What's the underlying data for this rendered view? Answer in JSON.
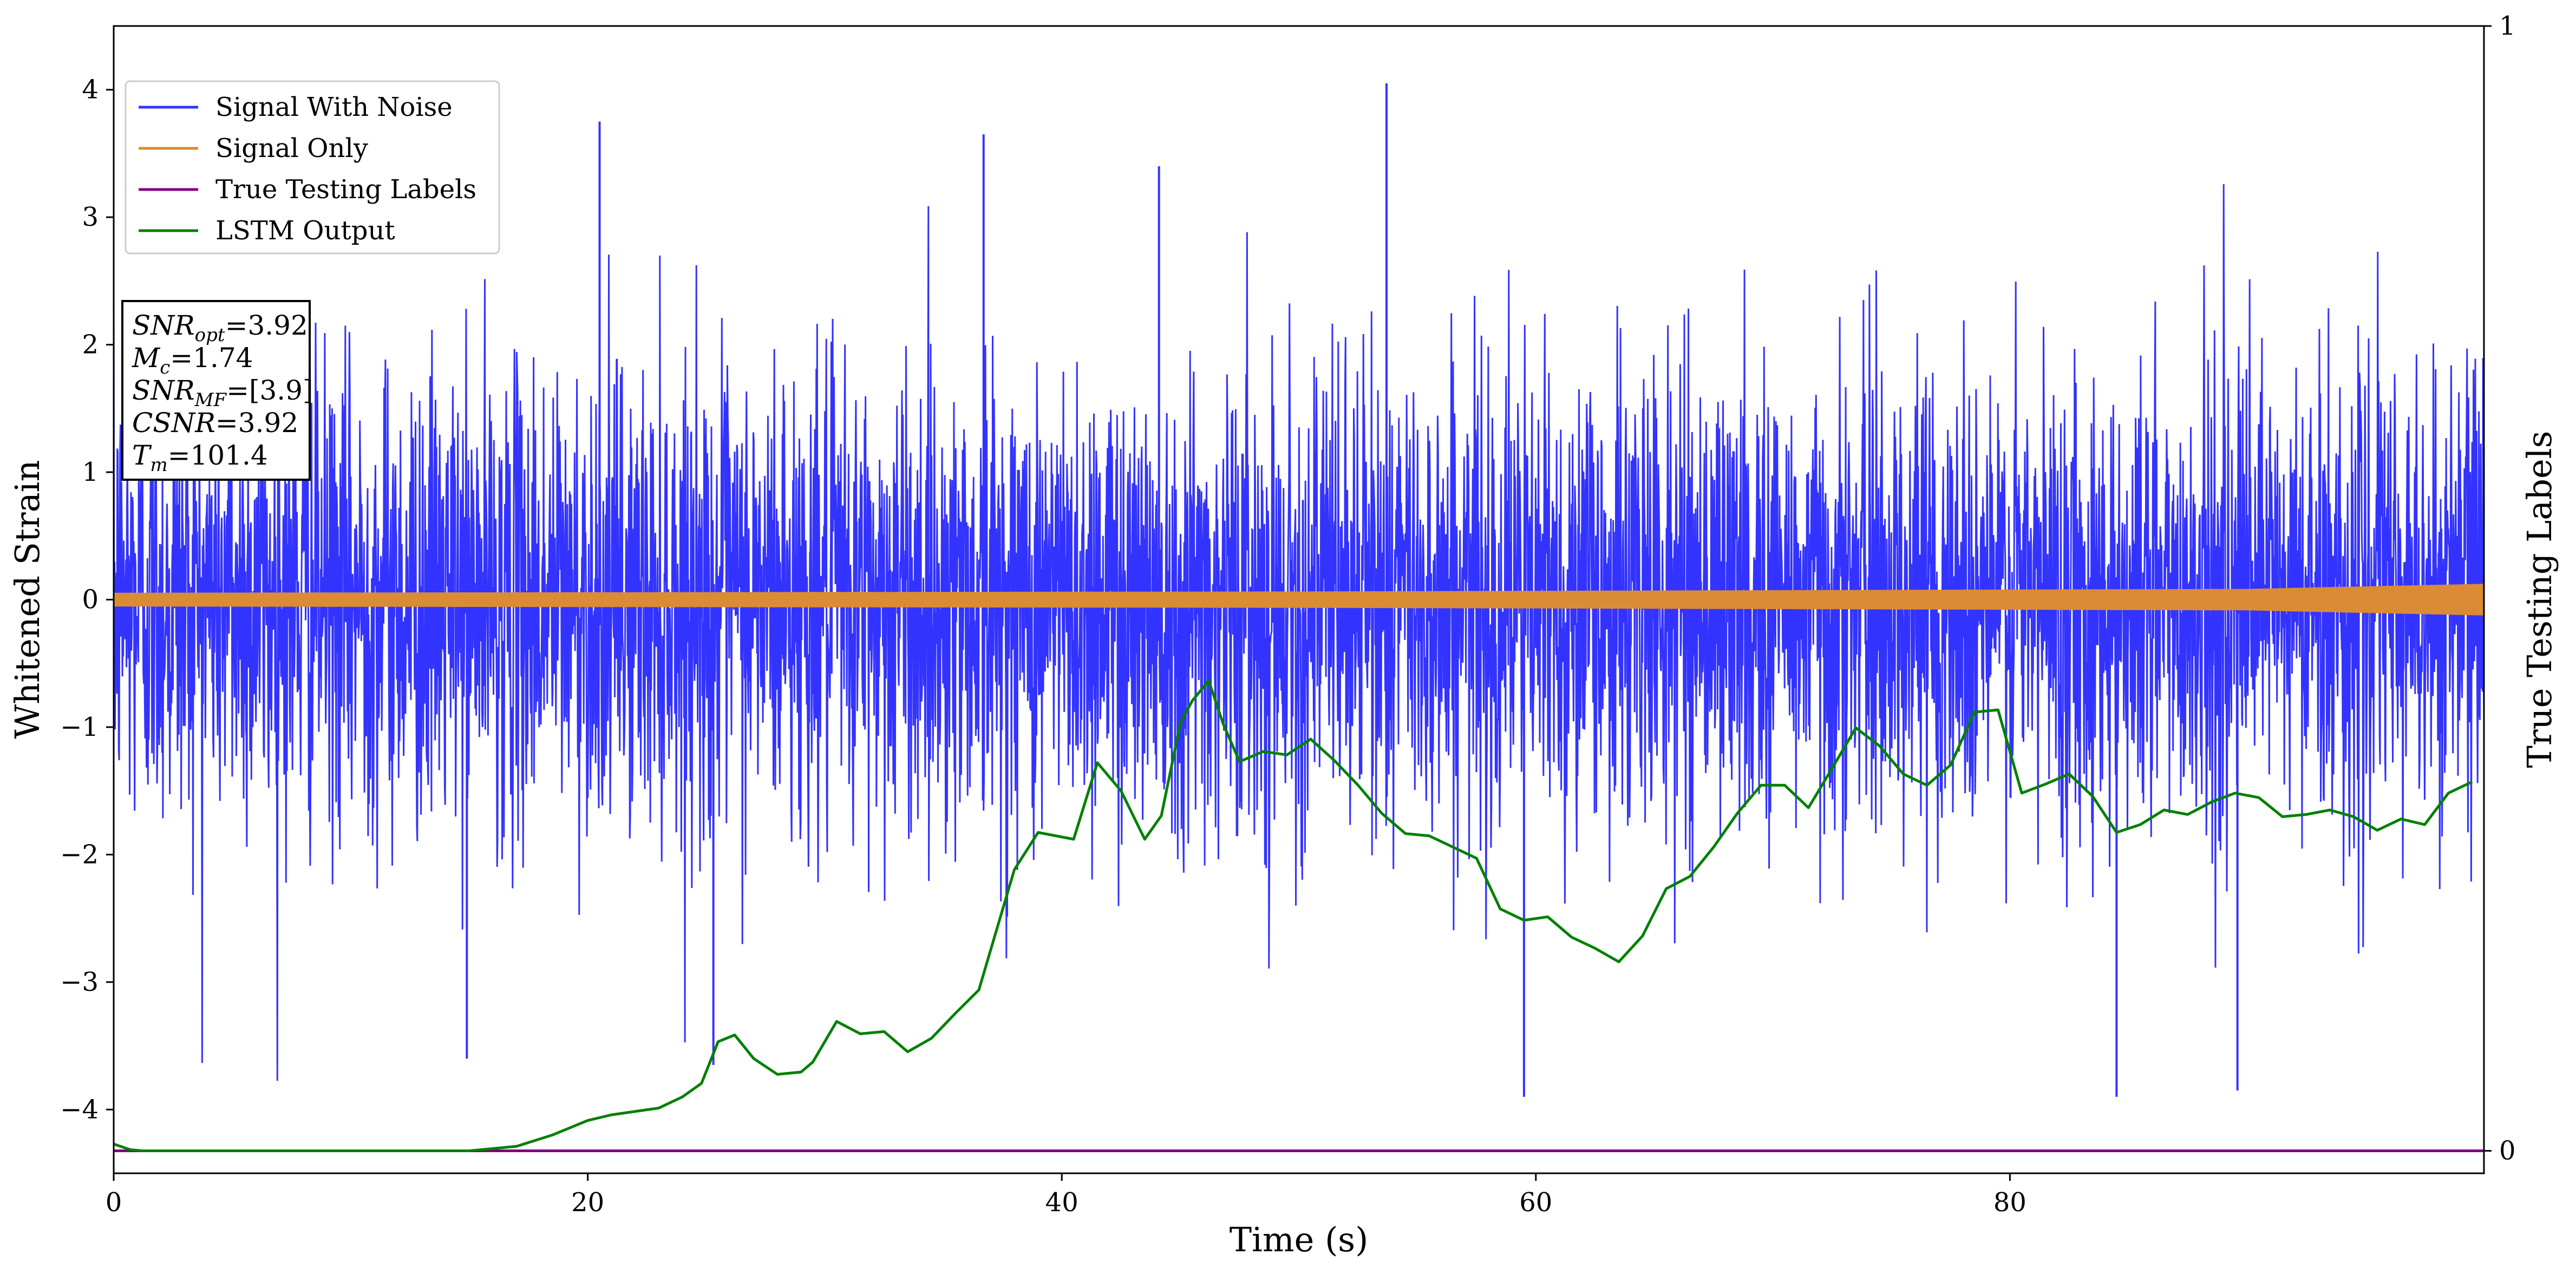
{
  "chart_data": {
    "type": "line",
    "xlabel": "Time (s)",
    "ylabel": "Whitened Strain",
    "ylabel_right": "True Testing Labels",
    "xlim": [
      0,
      100
    ],
    "ylim": [
      -4.5,
      4.5
    ],
    "ylim_right": [
      -0.02,
      1.0
    ],
    "xticks": [
      "0",
      "20",
      "40",
      "60",
      "80"
    ],
    "yticks": [
      "−4",
      "−3",
      "−2",
      "−1",
      "0",
      "1",
      "2",
      "3",
      "4"
    ],
    "yticks_right": [
      "0",
      "1"
    ],
    "legend_position": "upper-left",
    "grid": false,
    "colors": {
      "noise": "#3333ff",
      "signal": "#d98c33",
      "labels": "#800080",
      "lstm": "#008000"
    },
    "series": [
      {
        "name": "Signal With Noise",
        "description_type": "dense noise band",
        "typical_range": [
          -1.9,
          2.1
        ],
        "extreme_points": [
          [
            14.9,
            -3.6
          ],
          [
            20.5,
            3.75
          ],
          [
            25.3,
            -3.65
          ],
          [
            36.7,
            3.65
          ],
          [
            44.1,
            3.4
          ],
          [
            53.7,
            4.05
          ],
          [
            59.5,
            -3.9
          ],
          [
            84.5,
            -3.9
          ],
          [
            89.6,
            -3.85
          ]
        ]
      },
      {
        "name": "Signal Only",
        "description_type": "chirp amplitude envelope",
        "envelope": [
          [
            0,
            0.05
          ],
          [
            50,
            0.06
          ],
          [
            90,
            0.08
          ],
          [
            100,
            0.12
          ]
        ]
      },
      {
        "name": "True Testing Labels",
        "x": [
          0,
          100
        ],
        "y": [
          0,
          0
        ]
      },
      {
        "name": "LSTM Output",
        "x": [
          0,
          0.7,
          1.2,
          15,
          17,
          18.5,
          20,
          21,
          23,
          24,
          24.8,
          25.5,
          26.2,
          27,
          28,
          29,
          29.5,
          30.5,
          31.5,
          32.5,
          33.5,
          34.5,
          35.5,
          36.5,
          38,
          39,
          40.5,
          41.5,
          42.5,
          43.5,
          44.2,
          45,
          45.5,
          46.2,
          46.8,
          47.5,
          48.5,
          49.5,
          50.5,
          51.5,
          52.5,
          53.5,
          54.5,
          55.5,
          56.5,
          57.5,
          58.5,
          59.5,
          60.5,
          61.5,
          62.5,
          63.5,
          64.5,
          65.5,
          66.5,
          67.5,
          68.5,
          69.5,
          70.5,
          71.5,
          72.5,
          73.5,
          74.5,
          75.5,
          76.5,
          77.5,
          78.5,
          79.5,
          80.5,
          81.5,
          82.5,
          83.5,
          84.5,
          85.5,
          86.5,
          87.5,
          88.5,
          89.5,
          90.5,
          91.5,
          92.5,
          93.5,
          94.5,
          95.5,
          96.5,
          97.5,
          98.5,
          99.5
        ],
        "y": [
          0.006,
          0.001,
          0.0,
          0.0,
          0.004,
          0.014,
          0.027,
          0.032,
          0.038,
          0.048,
          0.06,
          0.097,
          0.103,
          0.082,
          0.068,
          0.07,
          0.079,
          0.115,
          0.104,
          0.106,
          0.088,
          0.1,
          0.122,
          0.143,
          0.25,
          0.283,
          0.277,
          0.345,
          0.32,
          0.277,
          0.298,
          0.38,
          0.4,
          0.418,
          0.38,
          0.346,
          0.355,
          0.352,
          0.366,
          0.347,
          0.325,
          0.3,
          0.282,
          0.28,
          0.27,
          0.26,
          0.215,
          0.205,
          0.208,
          0.19,
          0.18,
          0.168,
          0.191,
          0.233,
          0.244,
          0.27,
          0.3,
          0.325,
          0.325,
          0.305,
          0.34,
          0.376,
          0.36,
          0.335,
          0.325,
          0.343,
          0.39,
          0.392,
          0.318,
          0.326,
          0.335,
          0.315,
          0.283,
          0.29,
          0.303,
          0.299,
          0.31,
          0.318,
          0.314,
          0.297,
          0.299,
          0.303,
          0.297,
          0.285,
          0.295,
          0.29,
          0.318,
          0.328
        ]
      }
    ],
    "annotation": {
      "lines": [
        {
          "prefix": "SNR",
          "sub": "opt",
          "value": "=3.92"
        },
        {
          "prefix": "M",
          "sub": "c",
          "value": "=1.74"
        },
        {
          "prefix": "SNR",
          "sub": "MF",
          "value": "=[3.9]"
        },
        {
          "prefix": "CSNR",
          "sub": "",
          "value": "=3.92"
        },
        {
          "prefix": "T",
          "sub": "m",
          "value": "=101.4"
        }
      ]
    }
  }
}
